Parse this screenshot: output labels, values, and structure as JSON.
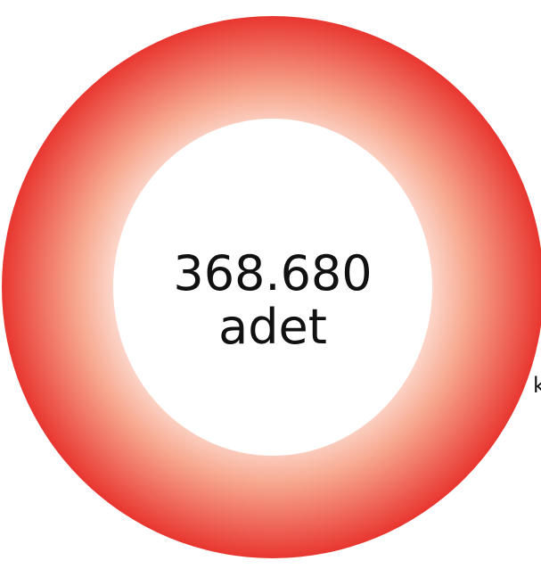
{
  "ring": {
    "value": "368.680",
    "unit": "adet"
  },
  "side_text": "k"
}
